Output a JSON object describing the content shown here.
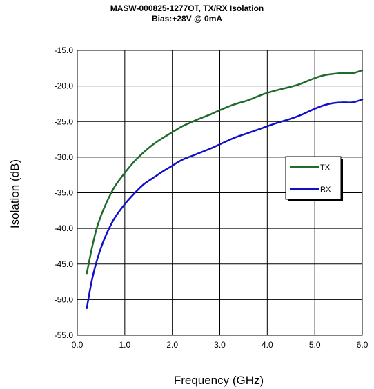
{
  "chart_data": {
    "type": "line",
    "title": "MASW-000825-1277OT, TX/RX Isolation",
    "subtitle": "Bias:+28V @ 0mA",
    "xlabel": "Frequency (GHz)",
    "ylabel": "Isolation (dB)",
    "xlim": [
      0.0,
      6.0
    ],
    "ylim": [
      -55.0,
      -15.0
    ],
    "x_ticks": [
      "0.0",
      "1.0",
      "2.0",
      "3.0",
      "4.0",
      "5.0",
      "6.0"
    ],
    "y_ticks": [
      "-15.0",
      "-20.0",
      "-25.0",
      "-30.0",
      "-35.0",
      "-40.0",
      "-45.0",
      "-50.0",
      "-55.0"
    ],
    "grid": true,
    "legend_position": "right",
    "series": [
      {
        "name": "TX",
        "color": "#1e6b2a",
        "x": [
          0.2,
          0.3,
          0.4,
          0.5,
          0.6,
          0.7,
          0.8,
          1.0,
          1.2,
          1.4,
          1.6,
          1.8,
          2.0,
          2.2,
          2.5,
          2.8,
          3.0,
          3.3,
          3.6,
          3.9,
          4.2,
          4.5,
          4.7,
          5.0,
          5.2,
          5.4,
          5.6,
          5.8,
          6.0
        ],
        "y": [
          -46.3,
          -43.0,
          -40.2,
          -38.2,
          -36.6,
          -35.2,
          -34.0,
          -32.2,
          -30.6,
          -29.3,
          -28.2,
          -27.3,
          -26.5,
          -25.7,
          -24.8,
          -24.0,
          -23.4,
          -22.6,
          -22.0,
          -21.2,
          -20.6,
          -20.1,
          -19.7,
          -18.9,
          -18.5,
          -18.3,
          -18.2,
          -18.2,
          -17.8
        ]
      },
      {
        "name": "RX",
        "color": "#1010c8",
        "x": [
          0.2,
          0.3,
          0.4,
          0.5,
          0.6,
          0.7,
          0.8,
          1.0,
          1.2,
          1.4,
          1.6,
          1.8,
          2.0,
          2.2,
          2.5,
          2.8,
          3.0,
          3.3,
          3.6,
          3.9,
          4.2,
          4.5,
          4.7,
          5.0,
          5.2,
          5.4,
          5.6,
          5.8,
          6.0
        ],
        "y": [
          -51.2,
          -47.5,
          -44.8,
          -42.7,
          -41.0,
          -39.6,
          -38.4,
          -36.6,
          -35.1,
          -33.8,
          -32.9,
          -32.0,
          -31.2,
          -30.4,
          -29.6,
          -28.8,
          -28.2,
          -27.3,
          -26.6,
          -25.9,
          -25.2,
          -24.6,
          -24.1,
          -23.2,
          -22.7,
          -22.4,
          -22.3,
          -22.3,
          -21.9
        ]
      }
    ]
  }
}
